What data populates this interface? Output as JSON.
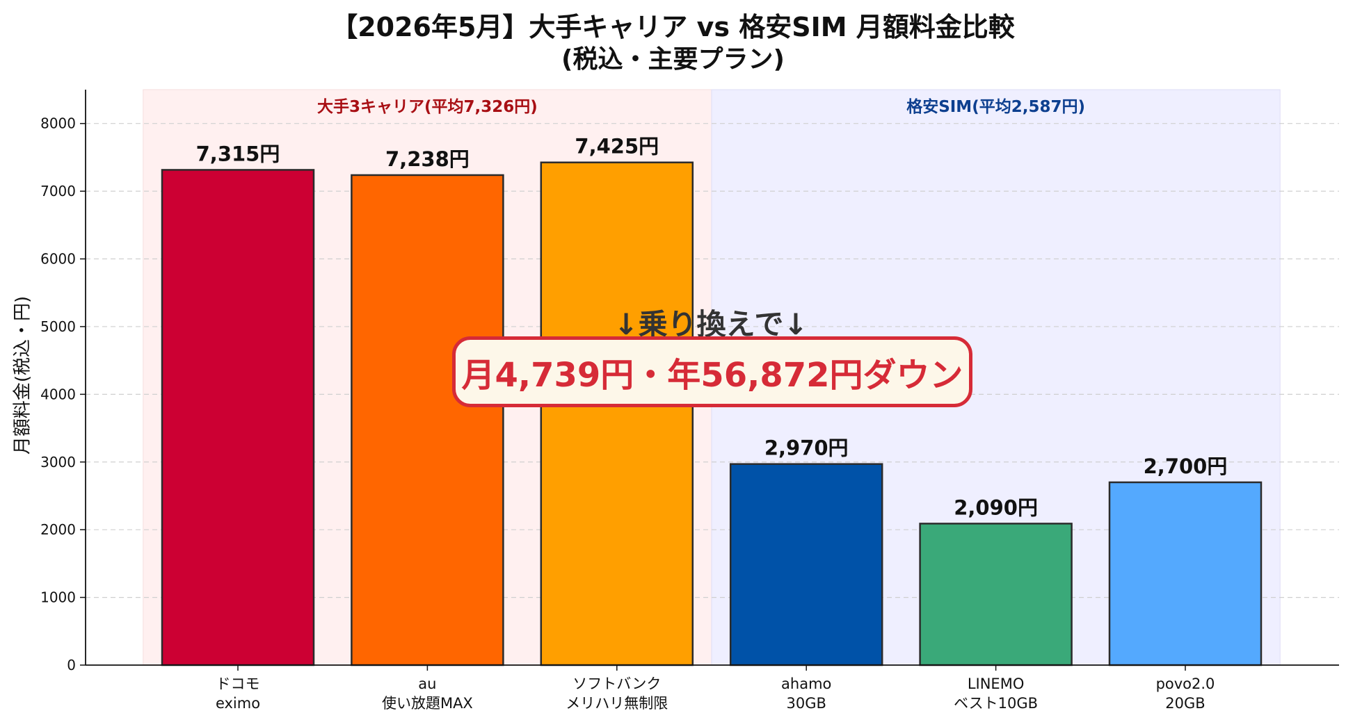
{
  "chart_data": {
    "type": "bar",
    "title": "【2026年5月】大手キャリア vs 格安SIM 月額料金比較",
    "subtitle": "(税込・主要プラン)",
    "xlabel": "",
    "ylabel": "月額料金(税込・円)",
    "ylim": [
      0,
      8500
    ],
    "yticks": [
      0,
      1000,
      2000,
      3000,
      4000,
      5000,
      6000,
      7000,
      8000
    ],
    "grid": true,
    "categories": [
      [
        "ドコモ",
        "eximo"
      ],
      [
        "au",
        "使い放題MAX"
      ],
      [
        "ソフトバンク",
        "メリハリ無制限"
      ],
      [
        "ahamo",
        "30GB"
      ],
      [
        "LINEMO",
        "ベスト10GB"
      ],
      [
        "povo2.0",
        "20GB"
      ]
    ],
    "values": [
      7315,
      7238,
      7425,
      2970,
      2090,
      2700
    ],
    "value_labels": [
      "7,315円",
      "7,238円",
      "7,425円",
      "2,970円",
      "2,090円",
      "2,700円"
    ],
    "bar_colors": [
      "#cc0033",
      "#ff6600",
      "#ff9f00",
      "#0052a8",
      "#3aa979",
      "#54a9fe"
    ],
    "groups": [
      {
        "label": "大手3キャリア(平均7,326円)",
        "from": 0,
        "to": 2,
        "bg": "#fff0f0",
        "text_color": "#a80f14"
      },
      {
        "label": "格安SIM(平均2,587円)",
        "from": 3,
        "to": 5,
        "bg": "#efefff",
        "text_color": "#0d3f8f"
      }
    ],
    "annotations": {
      "callout": "↓乗り換えで↓",
      "savings": "月4,739円・年56,872円ダウン"
    }
  }
}
